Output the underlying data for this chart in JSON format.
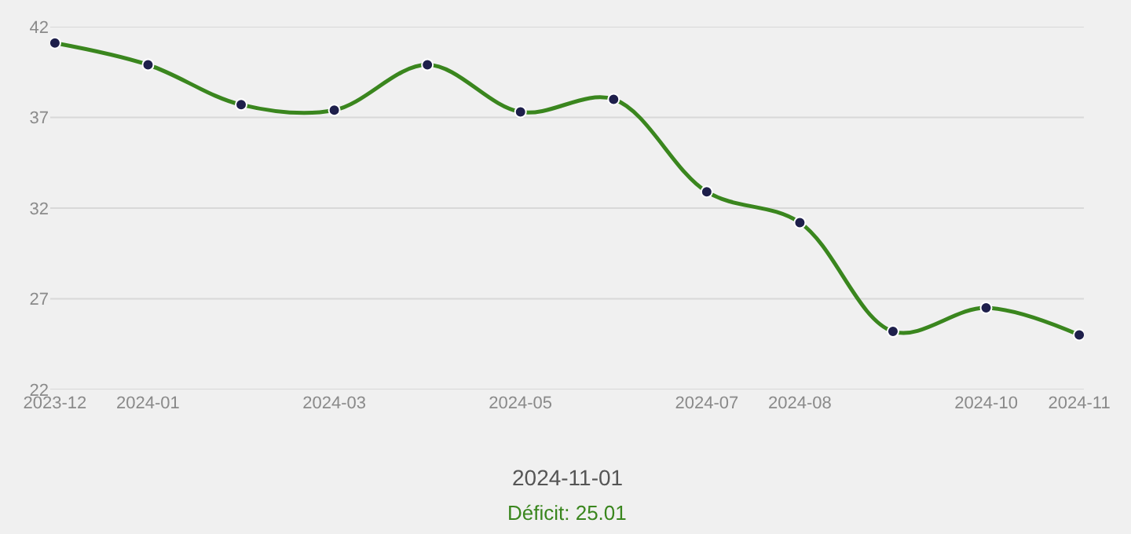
{
  "chart_data": {
    "type": "line",
    "categories": [
      "2023-12",
      "2024-01",
      null,
      "2024-03",
      null,
      "2024-05",
      null,
      "2024-07",
      "2024-08",
      null,
      "2024-10",
      "2024-11"
    ],
    "series": [
      {
        "color": "#3a861e",
        "values": [
          41.1,
          39.9,
          37.7,
          37.4,
          39.9,
          37.3,
          38.0,
          32.9,
          31.2,
          25.2,
          26.5,
          25.01
        ]
      }
    ],
    "ylim": [
      22,
      42
    ],
    "yticks": [
      22,
      27,
      32,
      37,
      42
    ],
    "grid": "y",
    "marker": "circle",
    "line_style": "solid",
    "annotations": [
      "2024-11-01",
      "Déficit: 25.01"
    ]
  }
}
